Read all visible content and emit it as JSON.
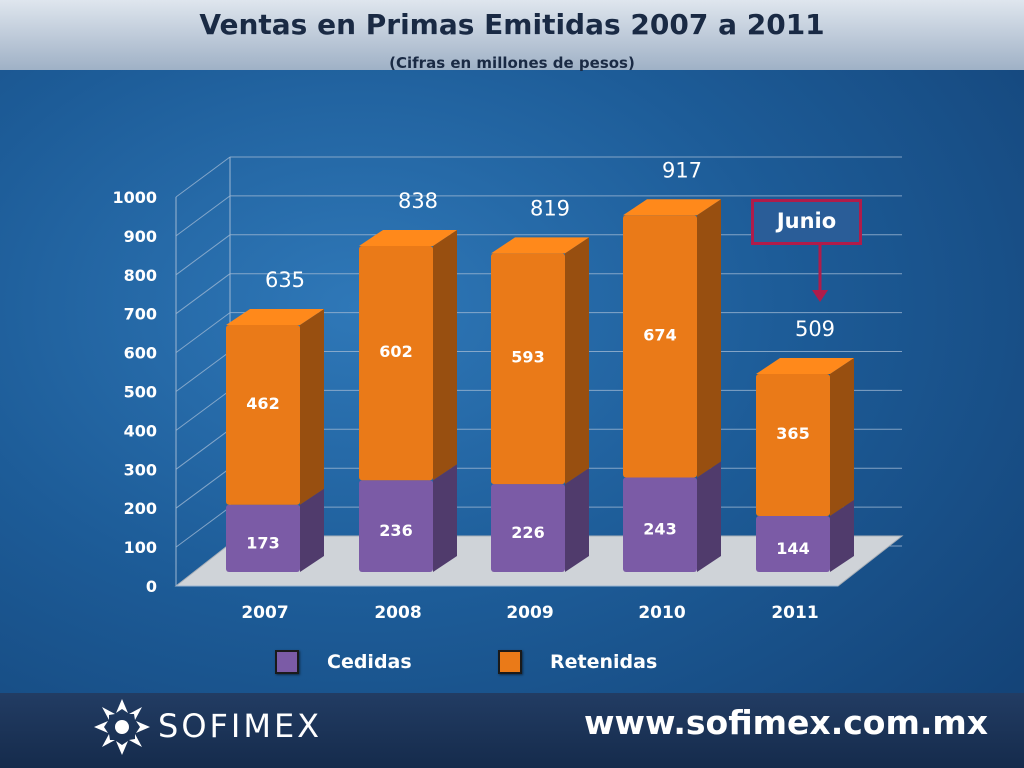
{
  "header": {
    "title": "Ventas en Primas Emitidas 2007 a 2011",
    "subtitle": "(Cifras en millones de pesos)"
  },
  "annotation": {
    "label": "Junio"
  },
  "footer": {
    "brand": "SOFIMEX",
    "url": "www.sofimex.com.mx"
  },
  "colors": {
    "cedidas": "#7b5ba6",
    "retenidas": "#ea7a18",
    "annotation": "#b01c4a"
  },
  "chart_data": {
    "type": "bar",
    "stacked": true,
    "title": "Ventas en Primas Emitidas 2007 a 2011",
    "subtitle": "(Cifras en millones de pesos)",
    "categories": [
      "2007",
      "2008",
      "2009",
      "2010",
      "2011"
    ],
    "series": [
      {
        "name": "Cedidas",
        "values": [
          173,
          236,
          226,
          243,
          144
        ]
      },
      {
        "name": "Retenidas",
        "values": [
          462,
          602,
          593,
          674,
          365
        ]
      }
    ],
    "totals": [
      635,
      838,
      819,
      917,
      509
    ],
    "ylim": [
      0,
      1000
    ],
    "yticks": [
      "0",
      "100",
      "200",
      "300",
      "400",
      "500",
      "600",
      "700",
      "800",
      "900",
      "1000"
    ],
    "grid": true,
    "legend_position": "bottom"
  }
}
